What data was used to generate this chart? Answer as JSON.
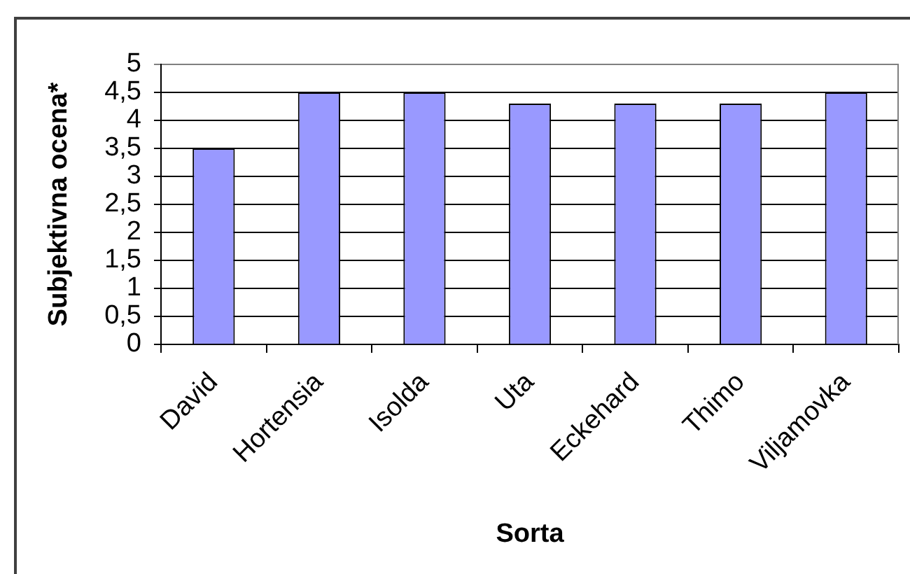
{
  "chart_data": {
    "type": "bar",
    "xlabel": "Sorta",
    "ylabel": "Subjektivna ocena*",
    "categories": [
      "David",
      "Hortensia",
      "Isolda",
      "Uta",
      "Eckehard",
      "Thimo",
      "Viljamovka"
    ],
    "values": [
      3.5,
      4.5,
      4.5,
      4.3,
      4.3,
      4.3,
      4.5
    ],
    "color": "#9999ff",
    "ylim": [
      0,
      5
    ],
    "yticks": [
      0,
      {
        "value": 0.5,
        "label": "0,5"
      },
      1,
      {
        "value": 1.5,
        "label": "1,5"
      },
      2,
      {
        "value": 2.5,
        "label": "2,5"
      },
      3,
      {
        "value": 3.5,
        "label": "3,5"
      },
      4,
      {
        "value": 4.5,
        "label": "4,5"
      },
      5
    ],
    "grid": "y"
  }
}
